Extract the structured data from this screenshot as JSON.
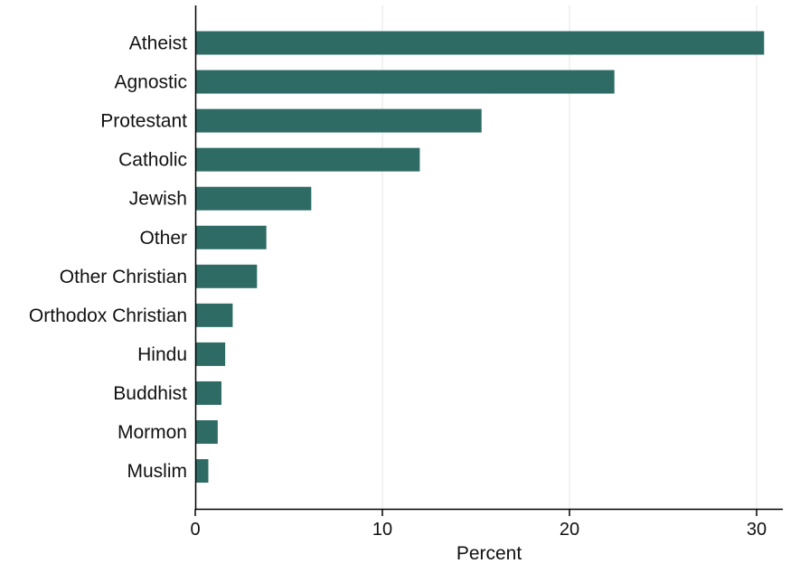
{
  "chart_data": {
    "type": "bar",
    "orientation": "horizontal",
    "categories": [
      "Atheist",
      "Agnostic",
      "Protestant",
      "Catholic",
      "Jewish",
      "Other",
      "Other Christian",
      "Orthodox Christian",
      "Hindu",
      "Buddhist",
      "Mormon",
      "Muslim"
    ],
    "values": [
      30.4,
      22.4,
      15.3,
      12.0,
      6.2,
      3.8,
      3.3,
      2.0,
      1.6,
      1.4,
      1.2,
      0.7
    ],
    "title": "",
    "xlabel": "Percent",
    "ylabel": "",
    "xlim": [
      0,
      31.5
    ],
    "xticks": [
      "0",
      "10",
      "20",
      "30"
    ],
    "grid": "vertical",
    "colors": {
      "bar": "#2e6b64",
      "grid": "#e6e6e6",
      "axis": "#000000"
    }
  }
}
